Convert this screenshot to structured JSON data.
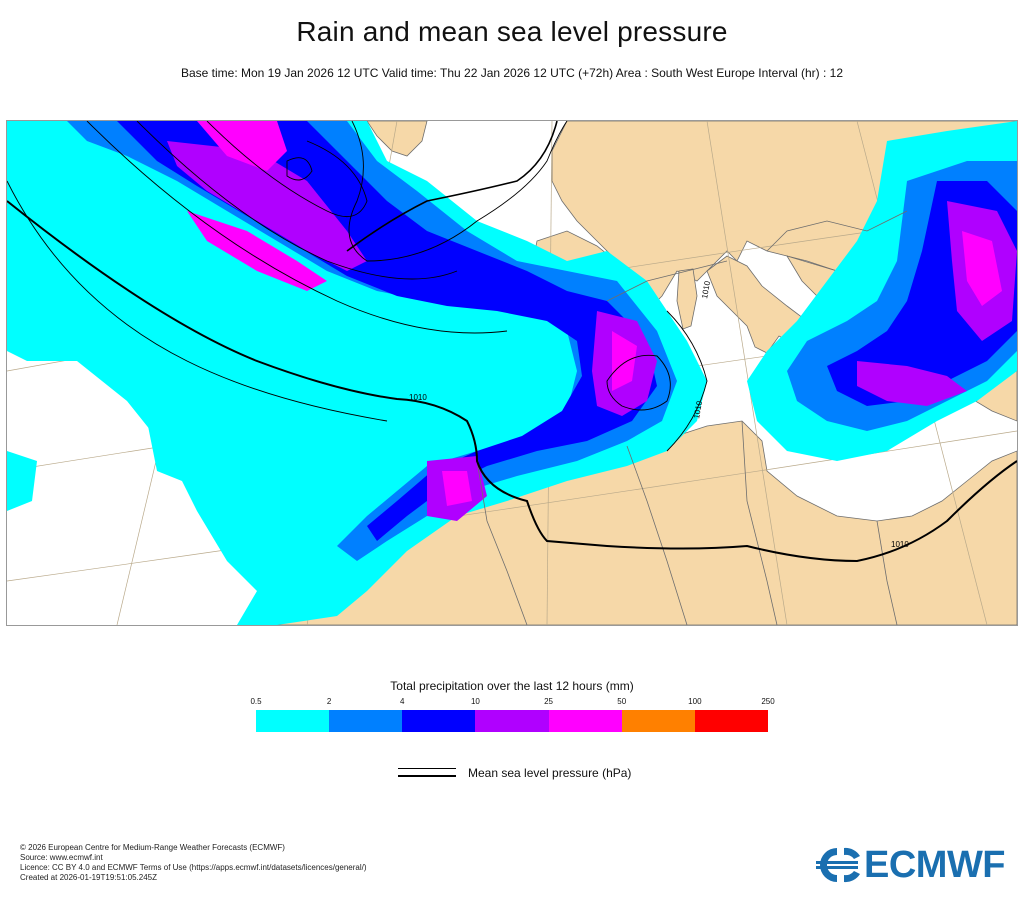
{
  "header": {
    "title": "Rain and mean sea level pressure",
    "subtitle": "Base time: Mon 19 Jan 2026 12 UTC Valid time: Thu 22 Jan 2026 12 UTC (+72h) Area : South West Europe Interval (hr) : 12"
  },
  "map": {
    "isobar_label": "1010",
    "colors": {
      "sea": "#ffffff",
      "land": "#f6d8a8",
      "border": "#6e6e6e",
      "graticule": "#b9a98a",
      "isobar": "#000000"
    }
  },
  "legend": {
    "title": "Total precipitation over the last 12 hours (mm)",
    "ticks": [
      "0.5",
      "2",
      "4",
      "10",
      "25",
      "50",
      "100",
      "250"
    ],
    "colors": [
      "#00ffff",
      "#0080ff",
      "#0000ff",
      "#b000ff",
      "#ff00ff",
      "#ff8000",
      "#ff0000"
    ]
  },
  "pressure_legend": {
    "label": "Mean sea level pressure (hPa)"
  },
  "footer": {
    "line1": "© 2026 European Centre for Medium-Range Weather Forecasts (ECMWF)",
    "line2": "Source: www.ecmwf.int",
    "line3": "Licence: CC BY 4.0 and ECMWF Terms of Use (https://apps.ecmwf.int/datasets/licences/general/)",
    "line4": "Created at 2026-01-19T19:51:05.245Z"
  },
  "logo": {
    "text": "ECMWF",
    "color": "#1a6fb0"
  }
}
